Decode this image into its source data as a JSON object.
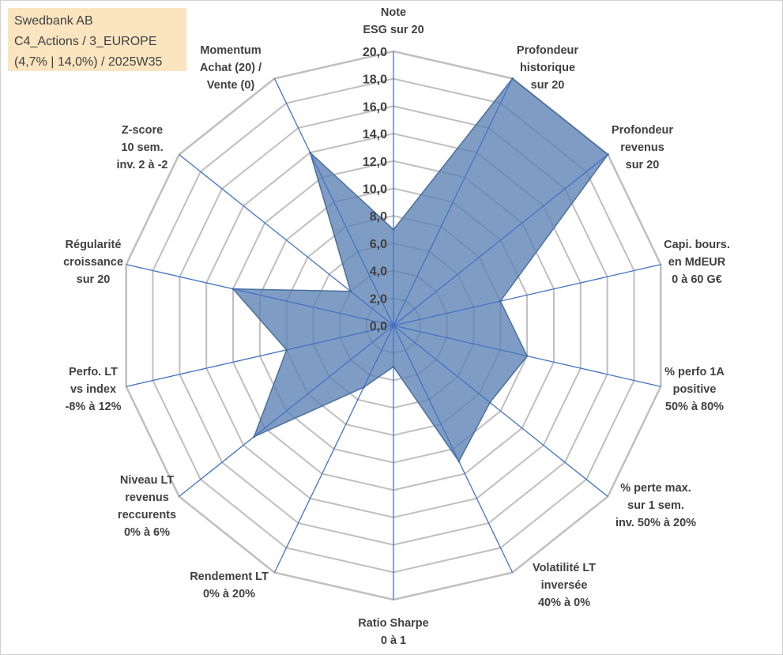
{
  "info_box": {
    "line1": "Swedbank AB",
    "line2": "C4_Actions / 3_EUROPE",
    "line3": "(4,7% | 14,0%) / 2025W35"
  },
  "chart_data": {
    "type": "radar",
    "title": "",
    "rmin": 0,
    "rmax": 20,
    "tick_step": 2,
    "tick_labels": [
      "0,0",
      "2,0",
      "4,0",
      "6,0",
      "8,0",
      "10,0",
      "12,0",
      "14,0",
      "16,0",
      "18,0",
      "20,0"
    ],
    "axes": [
      "Note\nESG sur 20",
      "Profondeur\nhistorique\nsur 20",
      "Profondeur\nrevenus\nsur 20",
      "Capi. bours.\nen MdEUR\n0 à 60 G€",
      "% perfo 1A\npositive\n50% à 80%",
      "% perte max.\nsur 1 sem.\ninv. 50% à 20%",
      "Volatilité LT\ninversée\n40% à 0%",
      "Ratio Sharpe\n0 à 1",
      "Rendement LT\n0% à 20%",
      "Niveau LT\nrevenus\nreccurents\n0% à 6%",
      "Perfo. LT\nvs index\n-8% à 12%",
      "Régularité\ncroissance\nsur 20",
      "Z-score\n10 sem.\ninv. 2 à -2",
      "Momentum\nAchat (20) /\nVente (0)"
    ],
    "series": [
      {
        "values": [
          7.0,
          20.0,
          20.0,
          8.0,
          10.0,
          9.0,
          11.0,
          3.0,
          5.0,
          13.0,
          8.0,
          12.0,
          4.0,
          14.0
        ]
      }
    ],
    "colors": {
      "fill": "#5b82b3",
      "fill_opacity": 0.78,
      "stroke": "#4a6fa0",
      "grid": "#bfbfbf",
      "spoke": "#4472c4"
    },
    "grid": true,
    "legend": "none"
  }
}
